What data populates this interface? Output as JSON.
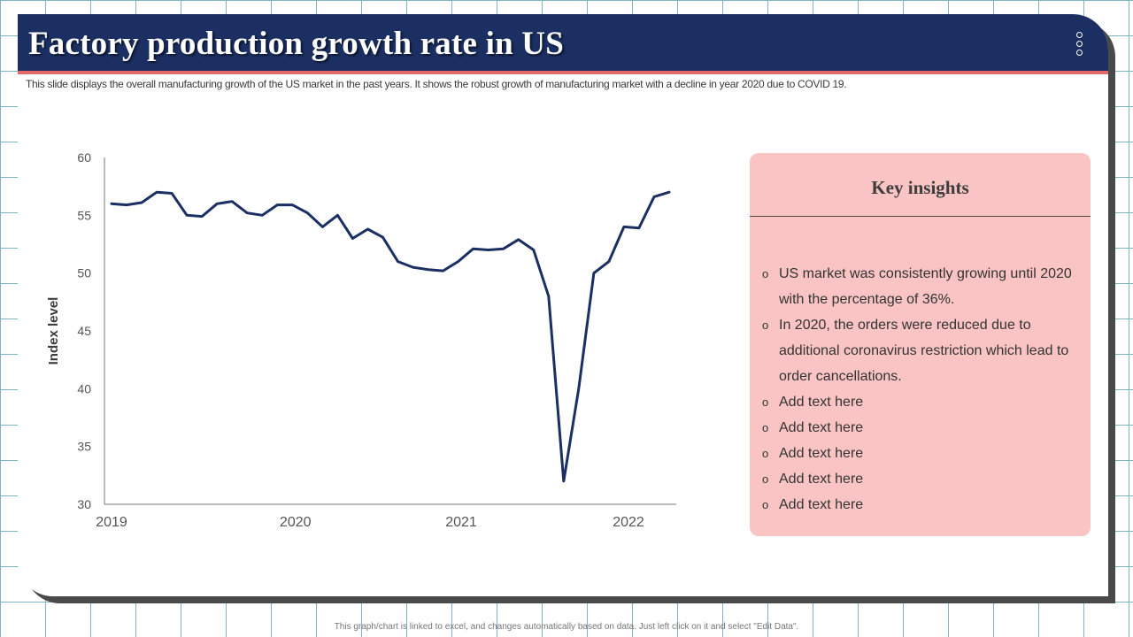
{
  "header": {
    "title": "Factory production growth rate in US",
    "subtitle": "This slide  displays the overall manufacturing growth of the US market in the past years. It shows the robust growth of manufacturing market with a decline in year 2020 due to COVID  19."
  },
  "chart_data": {
    "type": "line",
    "title": "",
    "xlabel": "",
    "ylabel": "Index level",
    "ylim": [
      30,
      60
    ],
    "yticks": [
      "30",
      "35",
      "40",
      "45",
      "50",
      "55",
      "60"
    ],
    "xticks": [
      "2019",
      "2020",
      "2021",
      "2022"
    ],
    "xtick_positions": [
      0,
      12.2,
      23.2,
      34.3
    ],
    "grid": false,
    "legend": "none",
    "series": [
      {
        "name": "Index level",
        "color": "#1b2f63",
        "values": [
          56.0,
          55.9,
          56.1,
          57.0,
          56.9,
          55.0,
          54.9,
          56.0,
          56.2,
          55.2,
          55.0,
          55.9,
          55.9,
          55.2,
          54.0,
          55.0,
          53.0,
          53.8,
          53.1,
          51.0,
          50.5,
          50.3,
          50.2,
          51.0,
          52.1,
          52.0,
          52.1,
          52.9,
          52.0,
          48.0,
          32.0,
          40.0,
          50.0,
          51.0,
          54.0,
          53.9,
          56.6,
          57.0
        ]
      }
    ]
  },
  "insights": {
    "title": "Key insights",
    "bullet": "o",
    "items": [
      "US market was consistently  growing until 2020 with the  percentage of 36%.",
      "In 2020, the orders were reduced due to additional coronavirus  restriction which lead to order cancellations.",
      "Add text here",
      "Add text here",
      "Add text here",
      "Add text here",
      "Add text here"
    ]
  },
  "footer": {
    "note": "This graph/chart is linked to excel, and changes automatically based on data. Just left click on it and select \"Edit Data\"."
  },
  "colors": {
    "header_bg": "#1b2f63",
    "accent_line": "#e46a6a",
    "panel_bg": "#f9c4c3",
    "series_line": "#1b2f63"
  }
}
